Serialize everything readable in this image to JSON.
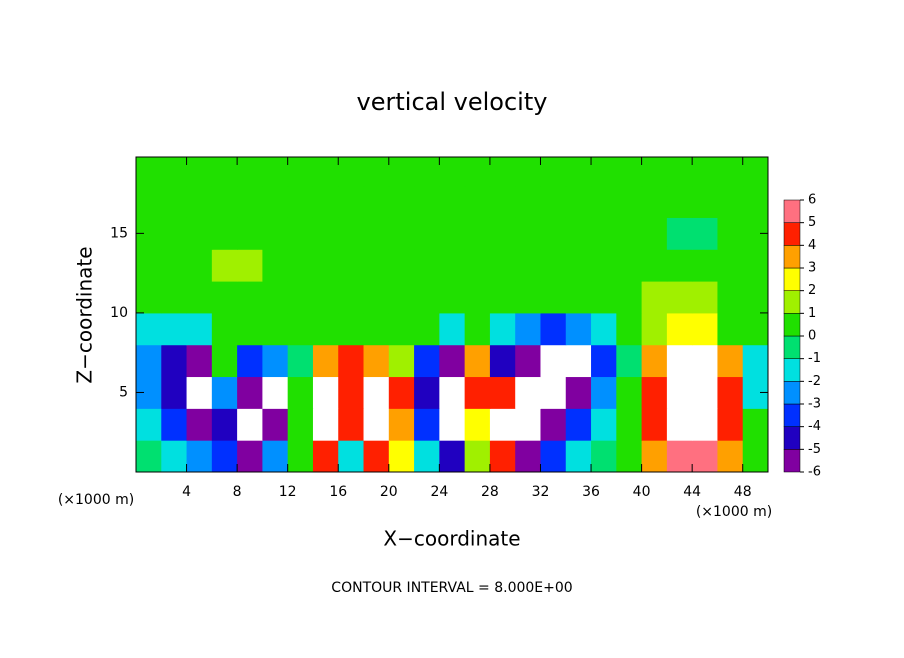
{
  "chart_data": {
    "type": "heatmap",
    "title": "vertical velocity",
    "xlabel": "X−coordinate",
    "ylabel": "Z−coordinate",
    "x_unit": "(×1000 m)",
    "y_unit": "(×1000 m)",
    "footnote": "CONTOUR INTERVAL = 8.000E+00",
    "xlim": [
      0,
      50
    ],
    "ylim": [
      0,
      19.8
    ],
    "xticks": [
      4,
      8,
      12,
      16,
      20,
      24,
      28,
      32,
      36,
      40,
      44,
      48
    ],
    "yticks": [
      5,
      10,
      15
    ],
    "x": [
      1,
      3,
      5,
      7,
      9,
      11,
      13,
      15,
      17,
      19,
      21,
      23,
      25,
      27,
      29,
      31,
      33,
      35,
      37,
      39,
      41,
      43,
      45,
      47,
      49
    ],
    "y": [
      1,
      3,
      5,
      7,
      9,
      11,
      13,
      15,
      17,
      19
    ],
    "values": [
      [
        -0.5,
        -1,
        -2,
        -3,
        -5,
        -2,
        0.5,
        5,
        -1,
        5,
        3,
        -1,
        -4,
        2,
        5,
        -5,
        -3,
        -1,
        0,
        0.5,
        4,
        6,
        6,
        4,
        0.5
      ],
      [
        -1,
        -3,
        -5,
        -4,
        -8,
        -5,
        1,
        7,
        5,
        8,
        4,
        -3,
        -7,
        3,
        8,
        -8,
        -6,
        -3,
        -1,
        0.5,
        5,
        8,
        8,
        5,
        0.5
      ],
      [
        -2,
        -4,
        -8,
        -2,
        -5,
        -7,
        1,
        8,
        5,
        8,
        5,
        -4,
        -8,
        5,
        5,
        -8,
        -8,
        -5,
        -2,
        0.5,
        5,
        8,
        8,
        5,
        -1
      ],
      [
        -2,
        -4,
        -5,
        1,
        -3,
        -2,
        0,
        4,
        5,
        4,
        2,
        -3,
        -5,
        4,
        -4,
        -5,
        -8,
        -8,
        -3,
        0,
        4,
        8,
        8,
        4,
        -1
      ],
      [
        -1.5,
        -1.5,
        -1,
        0.5,
        0.5,
        0.5,
        0.5,
        0.5,
        0.5,
        0.5,
        0.5,
        0.5,
        -1,
        0.5,
        -1,
        -2,
        -3,
        -2,
        -1,
        0.5,
        2,
        3,
        3,
        1,
        0.5
      ],
      [
        0.5,
        0.5,
        0.5,
        0.5,
        0.5,
        0.5,
        0.5,
        0.5,
        0.5,
        0.5,
        0.5,
        0.5,
        0.5,
        0.5,
        0.5,
        0.5,
        0.5,
        0.5,
        0.5,
        0.5,
        2,
        2,
        2,
        0.5,
        0.5
      ],
      [
        0.5,
        0.5,
        0.5,
        1.5,
        1.5,
        0.5,
        0.5,
        0.5,
        0.5,
        0.5,
        0.5,
        0.5,
        0.5,
        0.5,
        0.5,
        0.5,
        0.5,
        0.5,
        0.5,
        0.5,
        0.5,
        0.5,
        0.5,
        0.5,
        0.5
      ],
      [
        0.5,
        0.5,
        0.5,
        1,
        1,
        0.5,
        0.5,
        0.5,
        0.5,
        0.5,
        0.5,
        0.5,
        0.5,
        0.5,
        0.5,
        0.5,
        0.5,
        0.5,
        0.5,
        0.5,
        0.5,
        -0.5,
        -0.5,
        0.5,
        0.5
      ],
      [
        0.5,
        0.5,
        0.5,
        1,
        1,
        1,
        0.5,
        0.5,
        0.5,
        0.5,
        0.5,
        0.5,
        0.5,
        0.5,
        0.5,
        0.5,
        0.5,
        0.5,
        0.5,
        0.5,
        0.5,
        0.5,
        0.5,
        0.5,
        0.5
      ],
      [
        0.5,
        0.5,
        0.5,
        0.5,
        0.5,
        0.5,
        0.5,
        0.5,
        0.5,
        0.5,
        0.5,
        0.5,
        0.5,
        0.5,
        0.5,
        0.5,
        0.5,
        0.5,
        0.5,
        0.5,
        0.5,
        0.5,
        0.5,
        0.5,
        0.5
      ]
    ],
    "levels": [
      -6,
      -5,
      -4,
      -3,
      -2,
      -1,
      0,
      1,
      2,
      3,
      4,
      5,
      6
    ],
    "colors": [
      "#8000a0",
      "#2000c0",
      "#0030ff",
      "#0090ff",
      "#00e0e0",
      "#00e070",
      "#20e000",
      "#a0f000",
      "#ffff00",
      "#ffa000",
      "#ff2000",
      "#ff7080"
    ],
    "overflow_color": "#ffffff"
  }
}
